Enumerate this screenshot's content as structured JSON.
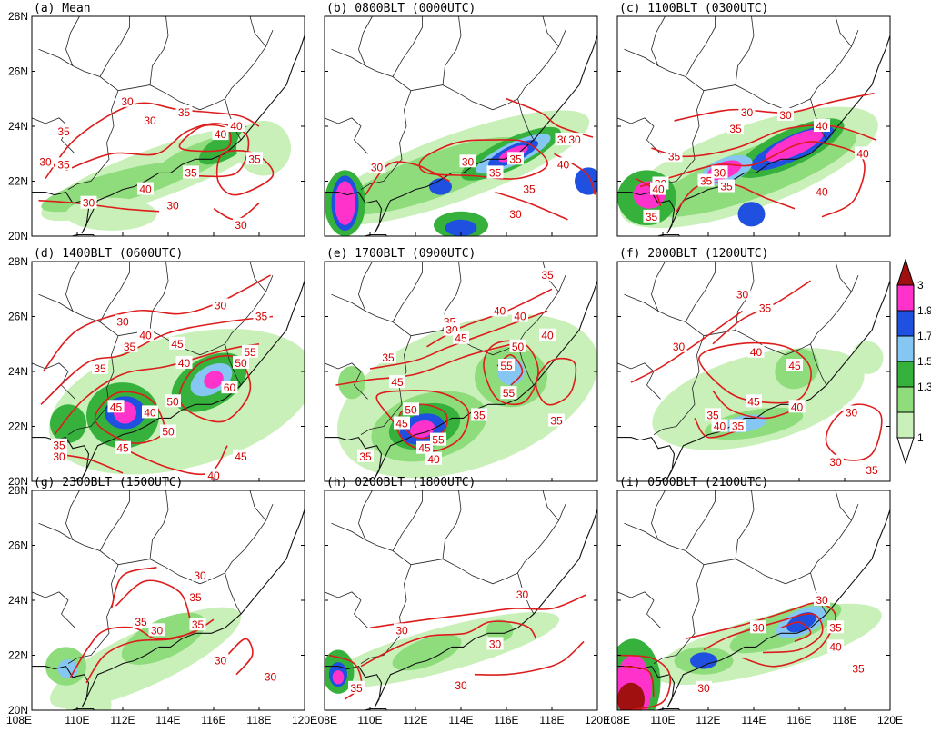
{
  "colors": {
    "contour": "#dd1c1c",
    "coast": "#111111",
    "border": "#222222",
    "shade_levels": [
      "#ffffff",
      "#c8f0b8",
      "#8fdc7c",
      "#35b13c",
      "#86c6f2",
      "#2050e0",
      "#ff33cc",
      "#a01010"
    ]
  },
  "axis": {
    "lat_ticks": [
      "20N",
      "22N",
      "24N",
      "26N",
      "28N"
    ],
    "lon_ticks": [
      "108E",
      "110E",
      "112E",
      "114E",
      "116E",
      "118E",
      "120E"
    ]
  },
  "colorbar": {
    "labels": [
      "1",
      "1.3",
      "1.5",
      "1.7",
      "1.9",
      "3"
    ]
  },
  "panels": [
    {
      "title": "(a) Mean",
      "contour_labels": [
        "30",
        "35",
        "40",
        "30",
        "35",
        "40",
        "30",
        "35",
        "30",
        "35",
        "30",
        "30",
        "35",
        "40"
      ]
    },
    {
      "title": "(b) 0800BLT (0000UTC)",
      "contour_labels": [
        "30",
        "35",
        "30",
        "30",
        "30",
        "35",
        "40",
        "35",
        "30"
      ]
    },
    {
      "title": "(c) 1100BLT (0300UTC)",
      "contour_labels": [
        "30",
        "35",
        "30",
        "35",
        "40",
        "40",
        "35",
        "35",
        "40",
        "30",
        "40",
        "30",
        "35"
      ]
    },
    {
      "title": "(d) 1400BLT (0600UTC)",
      "contour_labels": [
        "30",
        "35",
        "30",
        "35",
        "40",
        "35",
        "40",
        "45",
        "50",
        "55",
        "60",
        "45",
        "50",
        "40",
        "45",
        "50",
        "35",
        "30",
        "40",
        "45"
      ]
    },
    {
      "title": "(e) 1700BLT (0900UTC)",
      "contour_labels": [
        "35",
        "40",
        "35",
        "30",
        "45",
        "40",
        "35",
        "45",
        "50",
        "55",
        "55",
        "45",
        "50",
        "55",
        "45",
        "40",
        "35",
        "35",
        "40",
        "35"
      ]
    },
    {
      "title": "(f) 2000BLT (1200UTC)",
      "contour_labels": [
        "30",
        "35",
        "30",
        "40",
        "45",
        "45",
        "40",
        "35",
        "40",
        "35",
        "30",
        "30",
        "35"
      ]
    },
    {
      "title": "(g) 2300BLT (1500UTC)",
      "contour_labels": [
        "30",
        "35",
        "35",
        "30",
        "35",
        "30",
        "30"
      ]
    },
    {
      "title": "(h) 0200BLT (1800UTC)",
      "contour_labels": [
        "30",
        "30",
        "30",
        "30",
        "35"
      ]
    },
    {
      "title": "(i) 0500BLT (2100UTC)",
      "contour_labels": [
        "30",
        "30",
        "35",
        "40",
        "35",
        "30"
      ]
    }
  ]
}
